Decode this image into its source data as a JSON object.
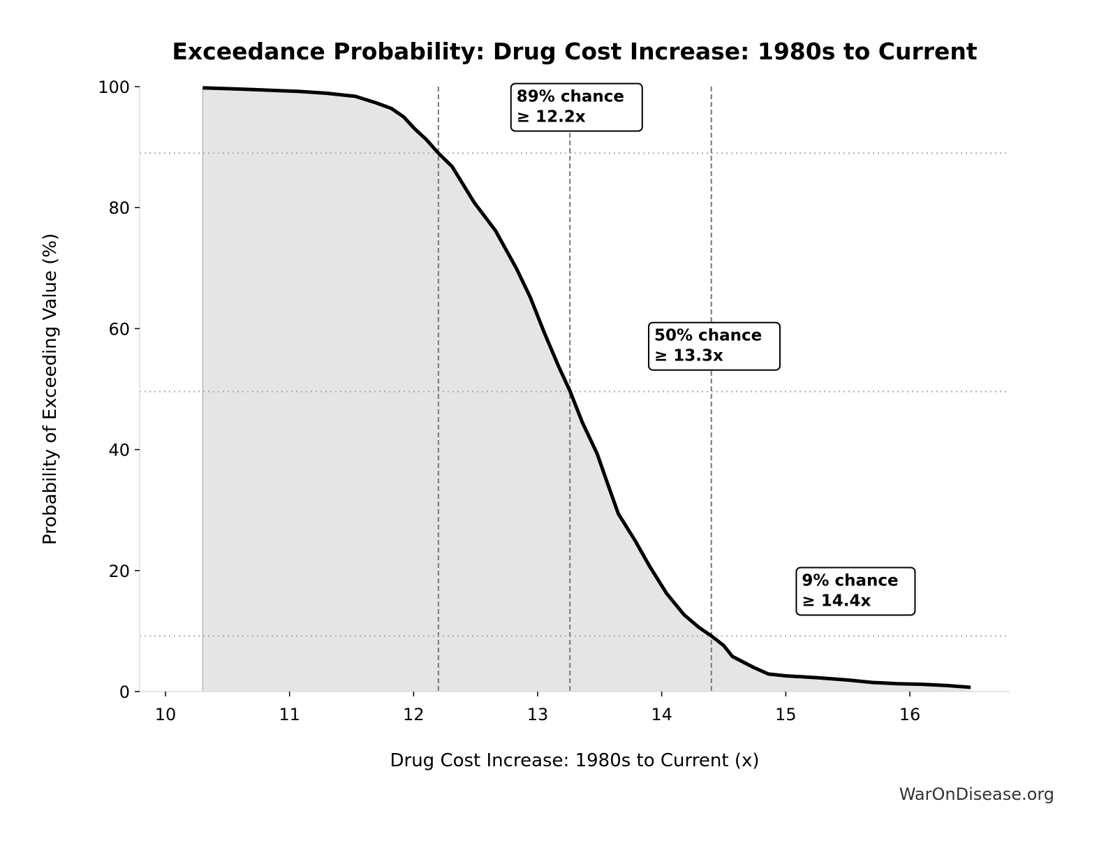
{
  "chart_data": {
    "type": "area",
    "title": "Exceedance Probability: Drug Cost Increase: 1980s to Current",
    "xlabel": "Drug Cost Increase: 1980s to Current (x)",
    "ylabel": "Probability of Exceeding Value (%)",
    "xlim": [
      9.79,
      16.8
    ],
    "ylim": [
      0,
      100
    ],
    "xticks": [
      10,
      11,
      12,
      13,
      14,
      15,
      16
    ],
    "yticks": [
      0,
      20,
      40,
      60,
      80,
      100
    ],
    "grid": false,
    "x": [
      10.3,
      10.6,
      11.08,
      11.3,
      11.53,
      11.7,
      11.82,
      11.92,
      12.01,
      12.1,
      12.2,
      12.31,
      12.49,
      12.66,
      12.83,
      12.94,
      13.05,
      13.17,
      13.26,
      13.36,
      13.48,
      13.56,
      13.65,
      13.79,
      13.9,
      14.04,
      14.18,
      14.3,
      14.4,
      14.5,
      14.57,
      14.74,
      14.86,
      15.0,
      15.25,
      15.5,
      15.7,
      15.9,
      16.1,
      16.3,
      16.49
    ],
    "y": [
      99.8,
      99.6,
      99.2,
      98.9,
      98.4,
      97.3,
      96.4,
      95.0,
      93.0,
      91.3,
      89.0,
      86.8,
      80.8,
      76.2,
      69.9,
      65.2,
      59.5,
      53.7,
      49.7,
      44.5,
      39.3,
      34.6,
      29.4,
      24.8,
      20.8,
      16.2,
      12.7,
      10.6,
      9.2,
      7.6,
      5.8,
      4.0,
      2.9,
      2.6,
      2.3,
      1.9,
      1.5,
      1.3,
      1.2,
      1.0,
      0.7
    ],
    "fill_color": "#e5e5e5",
    "line_color": "#000000",
    "thresholds": [
      {
        "probability": 89,
        "value": 12.2,
        "label_line1": "89% chance",
        "label_line2": "≥ 12.2x",
        "label_x": 12.83,
        "label_y": 97.5
      },
      {
        "probability": 49.6,
        "value": 13.26,
        "label_line1": "50% chance",
        "label_line2": "≥ 13.3x",
        "label_x": 13.94,
        "label_y": 58
      },
      {
        "probability": 9.2,
        "value": 14.4,
        "label_line1": "9% chance",
        "label_line2": "≥ 14.4x",
        "label_x": 15.13,
        "label_y": 17.5
      }
    ]
  },
  "watermark": "WarOnDisease.org"
}
